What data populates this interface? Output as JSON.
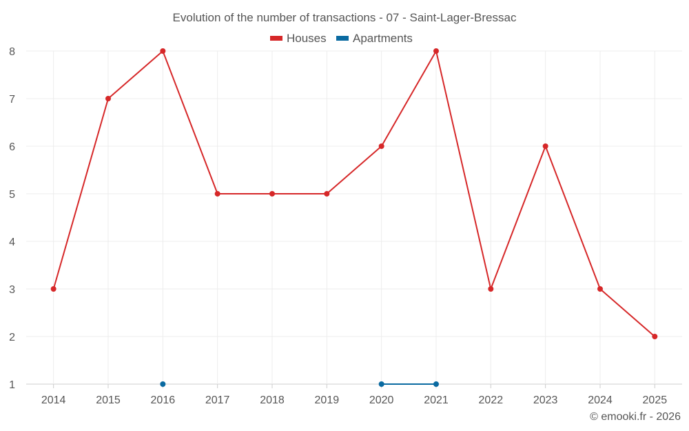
{
  "chart_data": {
    "type": "line",
    "title": "Evolution of the number of transactions - 07 - Saint-Lager-Bressac",
    "xlabel": "",
    "ylabel": "",
    "categories": [
      "2014",
      "2015",
      "2016",
      "2017",
      "2018",
      "2019",
      "2020",
      "2021",
      "2022",
      "2023",
      "2024",
      "2025"
    ],
    "ylim": [
      1,
      8
    ],
    "yticks": [
      1,
      2,
      3,
      4,
      5,
      6,
      7,
      8
    ],
    "grid": true,
    "legend_position": "top-center",
    "series": [
      {
        "name": "Houses",
        "color": "#d62728",
        "values": [
          3,
          7,
          8,
          5,
          5,
          5,
          6,
          8,
          3,
          6,
          3,
          2
        ]
      },
      {
        "name": "Apartments",
        "color": "#0a6aa1",
        "values": [
          null,
          null,
          1,
          null,
          null,
          null,
          1,
          1,
          null,
          null,
          null,
          null
        ]
      }
    ],
    "credit": "© emooki.fr - 2026"
  }
}
